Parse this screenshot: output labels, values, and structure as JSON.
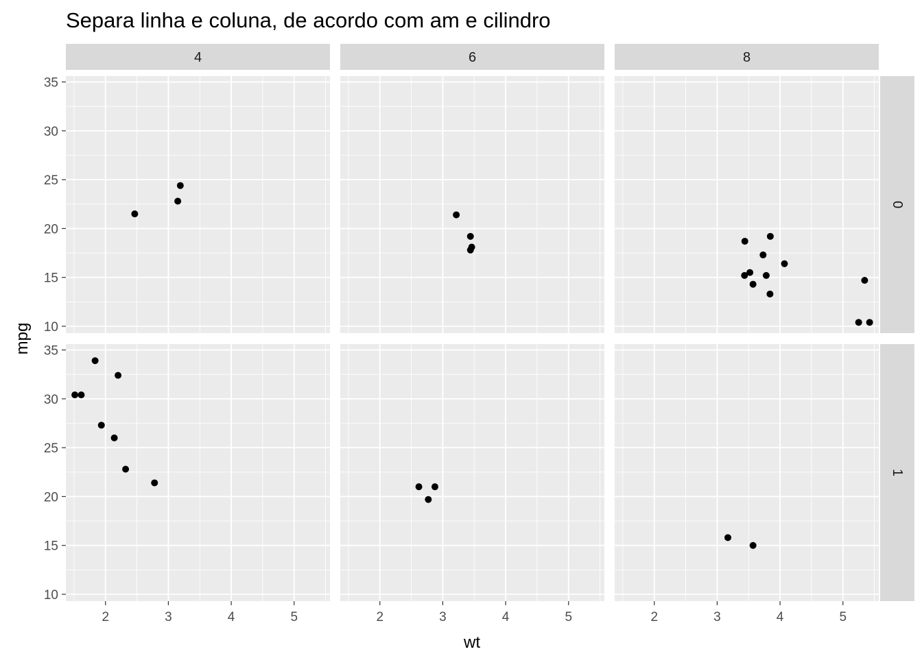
{
  "chart_data": {
    "type": "scatter",
    "title": "Separa linha e coluna, de acordo com am e cilindro",
    "xlabel": "wt",
    "ylabel": "mpg",
    "xlim": [
      1.37,
      5.57
    ],
    "ylim": [
      9.3,
      35.6
    ],
    "x_ticks": [
      2,
      3,
      4,
      5
    ],
    "y_ticks": [
      10,
      15,
      20,
      25,
      30,
      35
    ],
    "grid": true,
    "facet_cols": [
      "4",
      "6",
      "8"
    ],
    "facet_rows": [
      "0",
      "1"
    ],
    "panels": [
      {
        "row": "0",
        "col": "4",
        "points": [
          [
            2.465,
            21.5
          ],
          [
            3.15,
            22.8
          ],
          [
            3.19,
            24.4
          ]
        ]
      },
      {
        "row": "0",
        "col": "6",
        "points": [
          [
            3.215,
            21.4
          ],
          [
            3.44,
            19.2
          ],
          [
            3.44,
            17.8
          ],
          [
            3.46,
            18.1
          ]
        ]
      },
      {
        "row": "0",
        "col": "8",
        "points": [
          [
            3.44,
            18.7
          ],
          [
            3.57,
            14.3
          ],
          [
            4.07,
            16.4
          ],
          [
            3.73,
            17.3
          ],
          [
            3.78,
            15.2
          ],
          [
            5.25,
            10.4
          ],
          [
            5.424,
            10.4
          ],
          [
            5.345,
            14.7
          ],
          [
            3.52,
            15.5
          ],
          [
            3.435,
            15.2
          ],
          [
            3.84,
            13.3
          ],
          [
            3.845,
            19.2
          ]
        ]
      },
      {
        "row": "1",
        "col": "4",
        "points": [
          [
            2.32,
            22.8
          ],
          [
            2.2,
            32.4
          ],
          [
            1.615,
            30.4
          ],
          [
            1.835,
            33.9
          ],
          [
            1.935,
            27.3
          ],
          [
            2.14,
            26.0
          ],
          [
            1.513,
            30.4
          ],
          [
            2.78,
            21.4
          ]
        ]
      },
      {
        "row": "1",
        "col": "6",
        "points": [
          [
            2.62,
            21.0
          ],
          [
            2.875,
            21.0
          ],
          [
            2.77,
            19.7
          ]
        ]
      },
      {
        "row": "1",
        "col": "8",
        "points": [
          [
            3.17,
            15.8
          ],
          [
            3.57,
            15.0
          ]
        ]
      }
    ]
  }
}
